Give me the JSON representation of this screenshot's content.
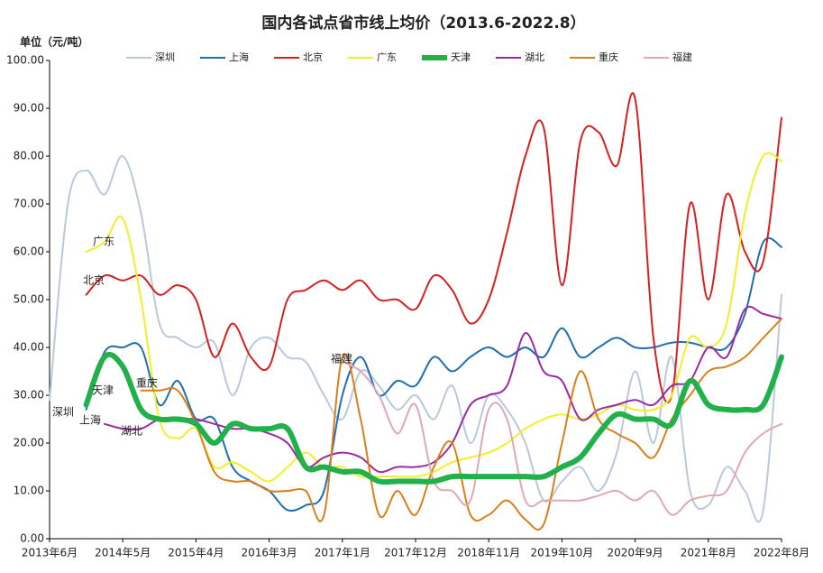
{
  "chart_data": {
    "type": "line",
    "title": "国内各试点省市线上均价（2013.6-2022.8）",
    "y_label": "单位（元/吨）",
    "categories": [
      "2013年6月",
      null,
      null,
      null,
      "2014年5月",
      null,
      null,
      null,
      "2015年4月",
      null,
      null,
      null,
      "2016年3月",
      null,
      null,
      null,
      "2017年1月",
      null,
      null,
      null,
      "2017年12月",
      null,
      null,
      null,
      "2018年11月",
      null,
      null,
      null,
      "2019年10月",
      null,
      null,
      null,
      "2020年9月",
      null,
      null,
      null,
      "2021年8月",
      null,
      null,
      null,
      "2022年8月"
    ],
    "ylim": [
      0,
      100
    ],
    "yticks": [
      {
        "value": 0,
        "label": "0.00"
      },
      {
        "value": 10,
        "label": "10.00"
      },
      {
        "value": 20,
        "label": "20.00"
      },
      {
        "value": 30,
        "label": "30.00"
      },
      {
        "value": 40,
        "label": "40.00"
      },
      {
        "value": 50,
        "label": "50.00"
      },
      {
        "value": 60,
        "label": "60.00"
      },
      {
        "value": 70,
        "label": "70.00"
      },
      {
        "value": 80,
        "label": "80.00"
      },
      {
        "value": 90,
        "label": "90.00"
      },
      {
        "value": 100,
        "label": "100.00"
      }
    ],
    "grid": false,
    "legend": "top",
    "series": [
      {
        "name": "深圳",
        "color": "#b9c9dc",
        "width": 2,
        "values": [
          29,
          70,
          77,
          72,
          80,
          68,
          45,
          42,
          40,
          41,
          30,
          40,
          42,
          38,
          37,
          30,
          25,
          35,
          32,
          27,
          30,
          25,
          32,
          20,
          30,
          27,
          20,
          8,
          12,
          15,
          10,
          18,
          35,
          20,
          38,
          10,
          7,
          15,
          10,
          6,
          51
        ]
      },
      {
        "name": "上海",
        "color": "#1f6fb0",
        "width": 2,
        "values": [
          null,
          null,
          27,
          39,
          40,
          40,
          28,
          33,
          25,
          25,
          15,
          12,
          10,
          6,
          7,
          10,
          30,
          38,
          30,
          33,
          32,
          38,
          35,
          38,
          40,
          38,
          40,
          38,
          44,
          38,
          40,
          42,
          40,
          40,
          41,
          41,
          40,
          40,
          47,
          62,
          61
        ]
      },
      {
        "name": "北京",
        "color": "#d62020",
        "width": 2,
        "values": [
          null,
          null,
          51,
          55,
          54,
          55,
          51,
          53,
          50,
          38,
          45,
          38,
          36,
          50,
          52,
          54,
          52,
          54,
          50,
          50,
          48,
          55,
          52,
          45,
          50,
          64,
          80,
          86,
          53,
          83,
          85,
          78,
          92,
          42,
          30,
          70,
          50,
          72,
          60,
          58,
          88
        ]
      },
      {
        "name": "广东",
        "color": "#f3ee2a",
        "width": 2,
        "values": [
          null,
          null,
          60,
          62,
          67,
          50,
          25,
          21,
          23,
          15,
          16,
          14,
          12,
          15,
          18,
          15,
          15,
          13,
          13,
          13,
          13,
          14,
          16,
          17,
          18,
          20,
          23,
          25,
          26,
          25,
          26,
          28,
          27,
          27,
          30,
          42,
          40,
          45,
          68,
          80,
          79
        ]
      },
      {
        "name": "天津",
        "color": "#22b04a",
        "width": 6,
        "values": [
          null,
          null,
          28,
          38,
          36,
          27,
          25,
          25,
          24,
          20,
          24,
          23,
          23,
          23,
          15,
          15,
          14,
          14,
          12,
          12,
          12,
          12,
          13,
          13,
          13,
          13,
          13,
          13,
          15,
          17,
          22,
          26,
          25,
          25,
          24,
          33,
          28,
          27,
          27,
          28,
          38
        ]
      },
      {
        "name": "湖北",
        "color": "#9b2ba0",
        "width": 2,
        "values": [
          null,
          null,
          null,
          24,
          23,
          23,
          25,
          25,
          25,
          24,
          23,
          23,
          22,
          20,
          15,
          17,
          18,
          17,
          14,
          15,
          15,
          16,
          20,
          28,
          30,
          32,
          43,
          35,
          33,
          25,
          27,
          28,
          29,
          28,
          32,
          33,
          40,
          38,
          48,
          47,
          46
        ]
      },
      {
        "name": "重庆",
        "color": "#d9801a",
        "width": 2,
        "values": [
          null,
          null,
          null,
          null,
          null,
          31,
          31,
          31,
          24,
          14,
          12,
          12,
          10,
          10,
          10,
          5,
          38,
          25,
          5,
          10,
          5,
          15,
          20,
          5,
          5,
          8,
          4,
          3,
          20,
          35,
          25,
          22,
          20,
          17,
          25,
          30,
          35,
          36,
          38,
          42,
          46
        ]
      },
      {
        "name": "福建",
        "color": "#e0a8b0",
        "width": 2,
        "values": [
          null,
          null,
          null,
          null,
          null,
          null,
          null,
          null,
          null,
          null,
          null,
          null,
          null,
          null,
          null,
          null,
          37,
          35,
          30,
          22,
          28,
          12,
          10,
          8,
          27,
          25,
          8,
          8,
          8,
          8,
          9,
          10,
          8,
          10,
          5,
          8,
          9,
          10,
          18,
          22,
          24
        ]
      }
    ]
  }
}
